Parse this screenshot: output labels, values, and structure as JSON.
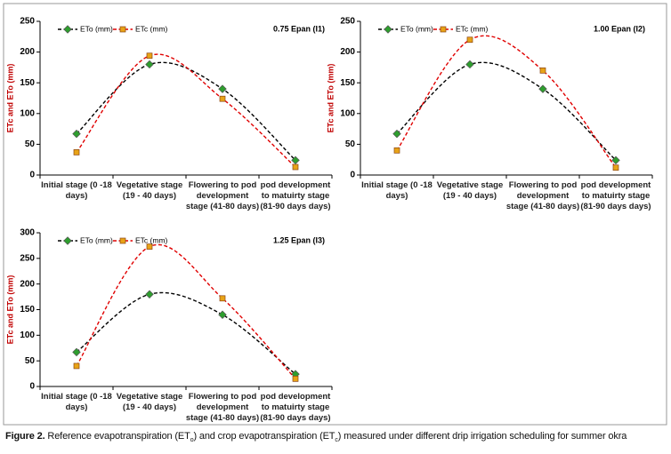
{
  "chart_data": [
    {
      "type": "line",
      "title": "0.75 Epan (I1)",
      "y_label": "ETc and ETo (mm)",
      "categories": [
        "Initial stage (0 -18 days)",
        "Vegetative stage (19 - 40 days)",
        "Flowering to pod development stage (41-80 days)",
        "pod development to matuirty stage (81-90 days days)"
      ],
      "series": [
        {
          "name": "ETo (mm)",
          "color": "#2e9e2e",
          "line_color": "#000000",
          "values": [
            67,
            180,
            140,
            24
          ]
        },
        {
          "name": "ETc (mm)",
          "color": "#e8a317",
          "line_color": "#e00000",
          "values": [
            37,
            194,
            124,
            13
          ]
        }
      ],
      "ylim": [
        0,
        250
      ],
      "yticks": [
        0,
        50,
        100,
        150,
        200,
        250
      ],
      "smooth": true
    },
    {
      "type": "line",
      "title": "1.00 Epan (I2)",
      "y_label": "ETc and ETo (mm)",
      "categories": [
        "Initial stage (0 -18 days)",
        "Vegetative stage (19 - 40 days)",
        "Flowering to pod development stage (41-80 days)",
        "pod development to matuirty stage (81-90 days days)"
      ],
      "series": [
        {
          "name": "ETo (mm)",
          "color": "#2e9e2e",
          "line_color": "#000000",
          "values": [
            67,
            180,
            140,
            24
          ]
        },
        {
          "name": "ETc (mm)",
          "color": "#e8a317",
          "line_color": "#e00000",
          "values": [
            40,
            220,
            170,
            12
          ]
        }
      ],
      "ylim": [
        0,
        250
      ],
      "yticks": [
        0,
        50,
        100,
        150,
        200,
        250
      ],
      "smooth": true
    },
    {
      "type": "line",
      "title": "1.25 Epan (I3)",
      "y_label": "ETc and ETo (mm)",
      "categories": [
        "Initial stage (0 -18 days)",
        "Vegetative stage (19 - 40 days)",
        "Flowering to pod development stage (41-80 days)",
        "pod development to matuirty stage (81-90 days days)"
      ],
      "series": [
        {
          "name": "ETo (mm)",
          "color": "#2e9e2e",
          "line_color": "#000000",
          "values": [
            67,
            180,
            140,
            24
          ]
        },
        {
          "name": "ETc (mm)",
          "color": "#e8a317",
          "line_color": "#e00000",
          "values": [
            40,
            273,
            172,
            15
          ]
        }
      ],
      "ylim": [
        0,
        300
      ],
      "yticks": [
        0,
        50,
        100,
        150,
        200,
        250,
        300
      ],
      "smooth": true
    }
  ],
  "caption": {
    "label": "Figure 2.",
    "parts": [
      " Reference evapotranspiration (ET",
      "o",
      ") and crop evapotranspiration (ET",
      "c",
      ") measured under different drip irrigation scheduling for summer okra"
    ]
  }
}
